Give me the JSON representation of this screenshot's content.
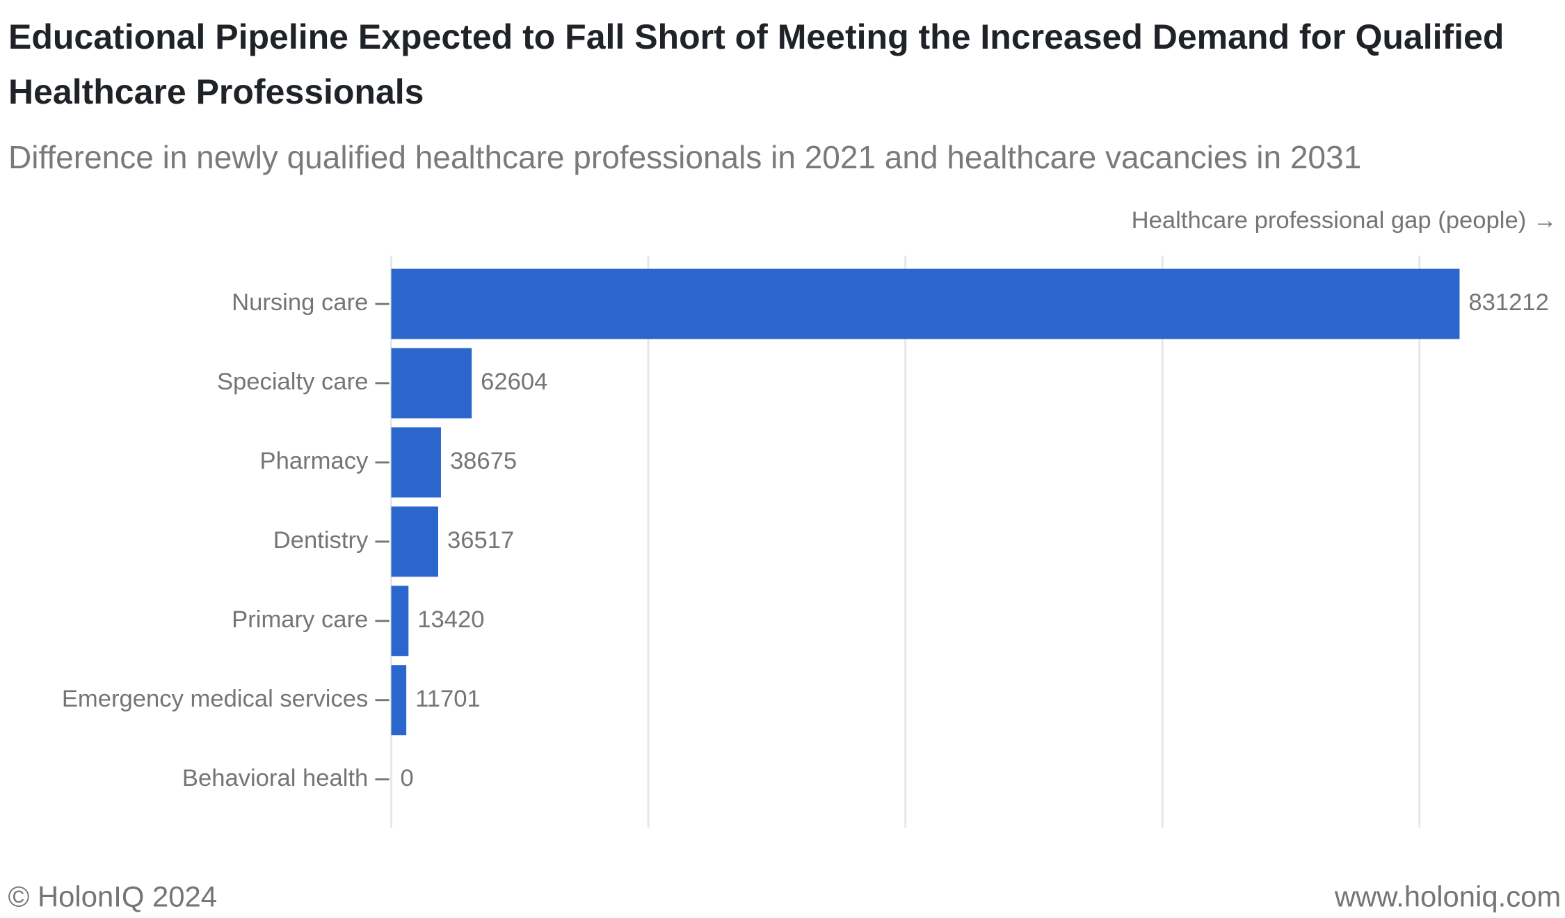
{
  "chart_data": {
    "type": "bar",
    "orientation": "horizontal",
    "title": "Educational Pipeline Expected to Fall Short of Meeting the Increased Demand for Qualified Healthcare Professionals",
    "subtitle": "Difference in newly qualified healthcare professionals in 2021 and healthcare vacancies in 2031",
    "x_axis_label": "Healthcare professional gap (people) →",
    "categories": [
      "Nursing care",
      "Specialty care",
      "Pharmacy",
      "Dentistry",
      "Primary care",
      "Emergency medical services",
      "Behavioral health"
    ],
    "values": [
      831212,
      62604,
      38675,
      36517,
      13420,
      11701,
      0
    ],
    "color": "#2a66cc",
    "xlim": [
      0,
      850000
    ],
    "xticks": [
      0,
      200000,
      400000,
      600000,
      800000
    ],
    "grid": true,
    "footer_left": "© HolonIQ 2024",
    "footer_right": "www.holoniq.com"
  }
}
